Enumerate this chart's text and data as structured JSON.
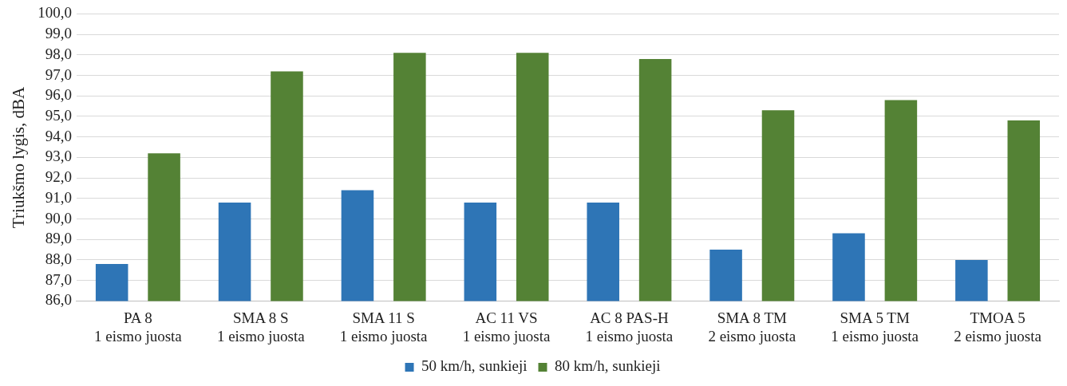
{
  "chart_data": {
    "type": "bar",
    "ylabel": "Triukšmo lygis, dBA",
    "categories": [
      "PA 8\n1 eismo juosta",
      "SMA 8 S\n1 eismo juosta",
      "SMA 11 S\n1 eismo juosta",
      "AC 11 VS\n1 eismo juosta",
      "AC 8 PAS-H\n1 eismo juosta",
      "SMA 8 TM\n2 eismo juosta",
      "SMA 5 TM\n1 eismo juosta",
      "TMOA 5\n2 eismo juosta"
    ],
    "series": [
      {
        "name": "50 km/h, sunkieji",
        "color": "#2e75b6",
        "values": [
          87.8,
          90.8,
          91.4,
          90.8,
          90.8,
          88.5,
          89.3,
          88.0
        ]
      },
      {
        "name": "80 km/h, sunkieji",
        "color": "#548235",
        "values": [
          93.2,
          97.2,
          98.1,
          98.1,
          97.8,
          95.3,
          95.8,
          94.8
        ]
      }
    ],
    "ylim": [
      86,
      100
    ],
    "yticks": [
      {
        "value": 86,
        "label": "86,0"
      },
      {
        "value": 87,
        "label": "87,0"
      },
      {
        "value": 88,
        "label": "88,0"
      },
      {
        "value": 89,
        "label": "89,0"
      },
      {
        "value": 90,
        "label": "90,0"
      },
      {
        "value": 91,
        "label": "91,0"
      },
      {
        "value": 92,
        "label": "92,0"
      },
      {
        "value": 93,
        "label": "93,0"
      },
      {
        "value": 94,
        "label": "94,0"
      },
      {
        "value": 95,
        "label": "95,0"
      },
      {
        "value": 96,
        "label": "96,0"
      },
      {
        "value": 97,
        "label": "97,0"
      },
      {
        "value": 98,
        "label": "98,0"
      },
      {
        "value": 99,
        "label": "99,0"
      },
      {
        "value": 100,
        "label": "100,0"
      }
    ],
    "grid": "y",
    "legend": "bottom"
  }
}
